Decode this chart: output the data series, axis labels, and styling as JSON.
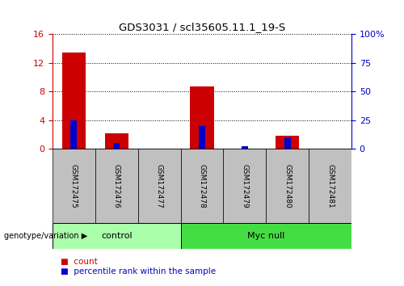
{
  "title": "GDS3031 / scl35605.11.1_19-S",
  "samples": [
    "GSM172475",
    "GSM172476",
    "GSM172477",
    "GSM172478",
    "GSM172479",
    "GSM172480",
    "GSM172481"
  ],
  "count_values": [
    13.5,
    2.1,
    0.0,
    8.7,
    0.0,
    1.8,
    0.0
  ],
  "percentile_values": [
    25,
    5,
    0,
    20,
    2,
    10,
    0
  ],
  "groups": [
    {
      "label": "control",
      "start": 0,
      "end": 3,
      "color": "#AAFFAA"
    },
    {
      "label": "Myc null",
      "start": 3,
      "end": 7,
      "color": "#44DD44"
    }
  ],
  "left_ylim": [
    0,
    16
  ],
  "left_yticks": [
    0,
    4,
    8,
    12,
    16
  ],
  "right_ylim": [
    0,
    100
  ],
  "right_yticks": [
    0,
    25,
    50,
    75,
    100
  ],
  "bar_color_count": "#CC0000",
  "bar_color_pct": "#0000CC",
  "count_bar_width": 0.55,
  "pct_bar_width": 0.15,
  "grid_color": "black",
  "tick_label_color_left": "#CC0000",
  "tick_label_color_right": "#0000CC",
  "genotype_label": "genotype/variation",
  "group_box_color": "#C0C0C0",
  "legend_count_label": "count",
  "legend_pct_label": "percentile rank within the sample",
  "figure_bg": "#FFFFFF"
}
